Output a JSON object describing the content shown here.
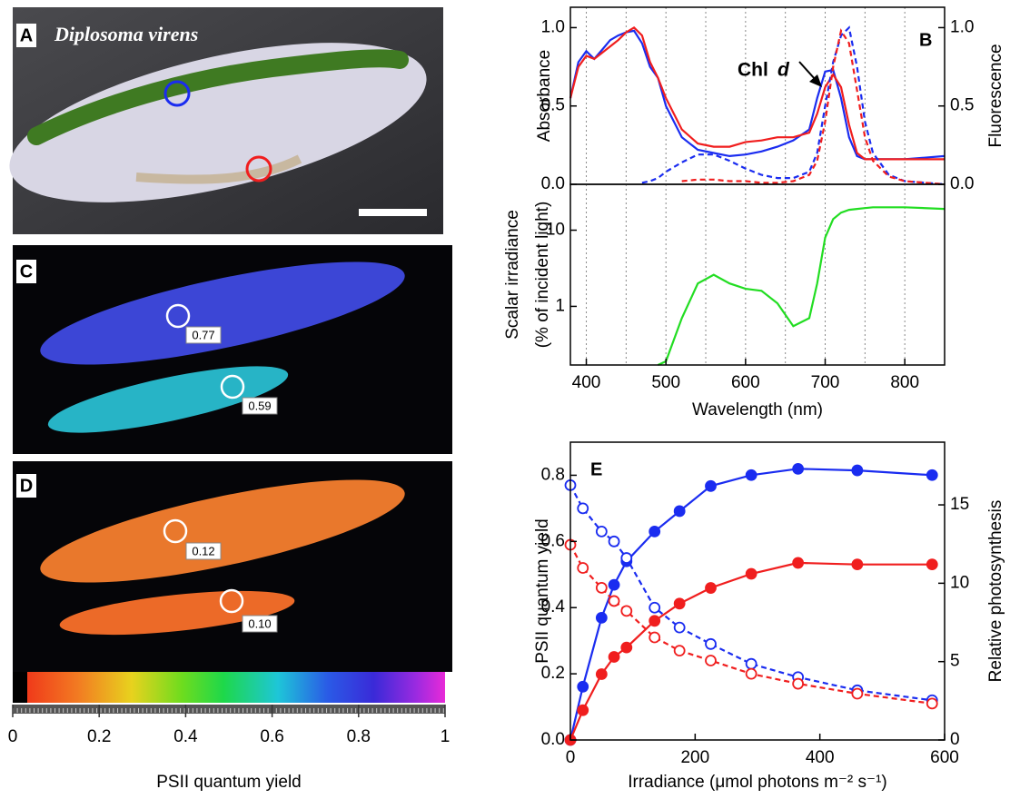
{
  "panels": {
    "a": {
      "label": "A",
      "species": "Diplosoma virens"
    },
    "c": {
      "label": "C",
      "values": [
        0.77,
        0.59
      ]
    },
    "d": {
      "label": "D",
      "values": [
        0.12,
        0.1
      ],
      "value_labels": [
        "0.12",
        "0.10"
      ]
    }
  },
  "colorbar": {
    "xlabel": "PSII quantum yield",
    "xlim": [
      0,
      1
    ],
    "xticks": [
      0,
      0.2,
      0.4,
      0.6,
      0.8,
      1
    ]
  },
  "chart_data": [
    {
      "type": "line",
      "panel": "B",
      "ylabel": [
        "Absorbance"
      ],
      "y2label": "Fluorescence",
      "annotation": {
        "text": "Chl",
        "italic": "d"
      },
      "x": [
        380,
        390,
        400,
        410,
        420,
        430,
        440,
        450,
        460,
        470,
        480,
        490,
        500,
        520,
        540,
        560,
        580,
        600,
        620,
        640,
        660,
        680,
        690,
        700,
        710,
        720,
        730,
        740,
        750,
        760,
        780,
        800,
        850
      ],
      "xlim": [
        380,
        850
      ],
      "xgrid": [
        400,
        450,
        500,
        550,
        600,
        650,
        700,
        750,
        800
      ],
      "ylim": [
        0,
        1.13
      ],
      "yticks": [
        {
          "value": 0,
          "label": "0.0"
        },
        0.5,
        {
          "value": 1,
          "label": "1.0"
        }
      ],
      "y2lim": [
        0,
        1.13
      ],
      "y2ticks": [
        {
          "value": 0,
          "label": "0.0"
        },
        0.5,
        {
          "value": 1,
          "label": "1.0"
        }
      ],
      "series": [
        {
          "color": "#1a2cf0",
          "values": [
            0.55,
            0.78,
            0.85,
            0.8,
            0.86,
            0.92,
            0.95,
            0.97,
            0.98,
            0.9,
            0.75,
            0.68,
            0.5,
            0.3,
            0.22,
            0.2,
            0.18,
            0.19,
            0.21,
            0.24,
            0.28,
            0.35,
            0.55,
            0.72,
            0.73,
            0.55,
            0.3,
            0.18,
            0.16,
            0.16,
            0.16,
            0.16,
            0.18
          ]
        },
        {
          "color": "#f01e1e",
          "values": [
            0.55,
            0.75,
            0.82,
            0.8,
            0.84,
            0.88,
            0.92,
            0.97,
            1.0,
            0.95,
            0.78,
            0.68,
            0.55,
            0.35,
            0.26,
            0.24,
            0.24,
            0.27,
            0.28,
            0.3,
            0.3,
            0.33,
            0.45,
            0.62,
            0.7,
            0.62,
            0.38,
            0.2,
            0.16,
            0.16,
            0.16,
            0.16,
            0.16
          ]
        },
        {
          "color": "#1a2cf0",
          "dash": true,
          "axis": "y2",
          "values": [
            null,
            null,
            null,
            null,
            null,
            null,
            null,
            null,
            null,
            0.01,
            0.02,
            0.04,
            0.08,
            0.14,
            0.19,
            0.19,
            0.15,
            0.1,
            0.06,
            0.04,
            0.04,
            0.08,
            0.2,
            0.5,
            0.78,
            0.95,
            1.0,
            0.75,
            0.4,
            0.2,
            0.06,
            0.02,
            0
          ]
        },
        {
          "color": "#f01e1e",
          "dash": true,
          "axis": "y2",
          "values": [
            null,
            null,
            null,
            null,
            null,
            null,
            null,
            null,
            null,
            null,
            null,
            null,
            null,
            0.02,
            0.03,
            0.03,
            0.02,
            0.02,
            0.01,
            0.01,
            0.02,
            0.06,
            0.15,
            0.4,
            0.75,
            0.98,
            0.9,
            0.6,
            0.3,
            0.15,
            0.05,
            0.02,
            0
          ]
        }
      ]
    },
    {
      "type": "line",
      "ylabel": [
        "Scalar irradiance",
        "(% of incident light)"
      ],
      "xlabel": "Wavelength (nm)",
      "x": [
        380,
        390,
        400,
        410,
        420,
        430,
        440,
        450,
        460,
        470,
        480,
        490,
        500,
        520,
        540,
        560,
        580,
        600,
        620,
        640,
        660,
        680,
        690,
        700,
        710,
        720,
        730,
        740,
        750,
        760,
        780,
        800,
        850
      ],
      "xlim": [
        380,
        850
      ],
      "xticks": [
        400,
        500,
        600,
        700,
        800
      ],
      "xgrid": [
        400,
        450,
        500,
        550,
        600,
        650,
        700,
        750,
        800
      ],
      "log_y": true,
      "ylim": [
        0.17,
        40
      ],
      "yticks": [
        1,
        10
      ],
      "series": [
        {
          "color": "#22dd22",
          "values": [
            null,
            null,
            null,
            null,
            null,
            null,
            null,
            null,
            null,
            null,
            null,
            0.17,
            0.19,
            0.7,
            2.0,
            2.6,
            2.0,
            1.7,
            1.6,
            1.1,
            0.55,
            0.7,
            2.0,
            8,
            14,
            17,
            18.5,
            19,
            19.5,
            20,
            20,
            20,
            19
          ]
        }
      ]
    },
    {
      "type": "line",
      "panel": "E",
      "ylabel": [
        "PSII quantum yield"
      ],
      "y2label": "Relative photosynthesis",
      "xlabel": "Irradiance (μmol photons m⁻² s⁻¹)",
      "x": [
        0,
        20,
        50,
        70,
        90,
        135,
        175,
        225,
        290,
        365,
        460,
        580
      ],
      "xlim": [
        0,
        600
      ],
      "xticks": [
        0,
        200,
        400,
        600
      ],
      "ylim": [
        0,
        0.9
      ],
      "yticks": [
        {
          "value": 0,
          "label": "0.0"
        },
        0.2,
        0.4,
        0.6,
        0.8
      ],
      "y2lim": [
        0,
        19
      ],
      "y2ticks": [
        0,
        5,
        10,
        15
      ],
      "series": [
        {
          "color": "#1a2cf0",
          "marker": "filled",
          "axis": "y2",
          "values": [
            0,
            3.4,
            7.8,
            9.9,
            11.4,
            13.3,
            14.6,
            16.2,
            16.9,
            17.3,
            17.2,
            16.9
          ]
        },
        {
          "color": "#f01e1e",
          "marker": "filled",
          "axis": "y2",
          "values": [
            0,
            1.9,
            4.2,
            5.3,
            5.9,
            7.6,
            8.7,
            9.7,
            10.6,
            11.3,
            11.2,
            11.2
          ]
        },
        {
          "color": "#1a2cf0",
          "marker": "open",
          "dash": true,
          "values": [
            0.77,
            0.7,
            0.63,
            0.6,
            0.55,
            0.4,
            0.34,
            0.29,
            0.23,
            0.19,
            0.15,
            0.12
          ]
        },
        {
          "color": "#f01e1e",
          "marker": "open",
          "dash": true,
          "values": [
            0.59,
            0.52,
            0.46,
            0.42,
            0.39,
            0.31,
            0.27,
            0.24,
            0.2,
            0.17,
            0.14,
            0.11
          ]
        }
      ]
    }
  ]
}
